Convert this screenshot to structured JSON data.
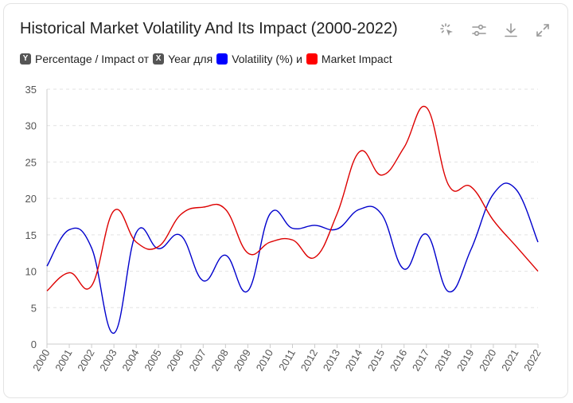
{
  "chart_data": {
    "type": "line",
    "title": "Historical Market Volatility And Its Impact (2000-2022)",
    "legend": [
      {
        "key": "Y",
        "label": "Percentage / Impact от",
        "color": "#555555"
      },
      {
        "key": "X",
        "label": "Year для",
        "color": "#555555"
      },
      {
        "key": "",
        "label": "Volatility (%) и",
        "color": "#0000ff"
      },
      {
        "key": "",
        "label": "Market Impact",
        "color": "#ff0000"
      }
    ],
    "x": [
      "2000",
      "2001",
      "2002",
      "2003",
      "2004",
      "2005",
      "2006",
      "2007",
      "2008",
      "2009",
      "2010",
      "2011",
      "2012",
      "2013",
      "2014",
      "2015",
      "2016",
      "2017",
      "2018",
      "2019",
      "2020",
      "2021",
      "2022"
    ],
    "series": [
      {
        "name": "Volatility (%)",
        "color": "#0000cc",
        "values": [
          10.7,
          15.7,
          13.2,
          1.5,
          15.3,
          13.1,
          14.9,
          8.7,
          12.2,
          7.3,
          17.9,
          15.9,
          16.3,
          15.8,
          18.5,
          17.8,
          10.3,
          15.1,
          7.2,
          13.0,
          20.6,
          21.3,
          14.0
        ]
      },
      {
        "name": "Market Impact",
        "color": "#dd0000",
        "values": [
          7.3,
          9.8,
          8.0,
          18.3,
          14.0,
          13.4,
          17.8,
          18.8,
          18.5,
          12.5,
          14.0,
          14.3,
          11.9,
          17.9,
          26.4,
          23.2,
          27.0,
          32.5,
          21.8,
          21.6,
          17.0,
          13.5,
          10.0
        ]
      }
    ],
    "ylim": [
      0,
      35
    ],
    "yticks": [
      "0",
      "5",
      "10",
      "15",
      "20",
      "25",
      "30",
      "35"
    ],
    "grid": true,
    "legend_position": "top-left"
  },
  "toolbar": {
    "icons": [
      "select-icon",
      "adjust-icon",
      "download-icon",
      "expand-icon"
    ]
  }
}
